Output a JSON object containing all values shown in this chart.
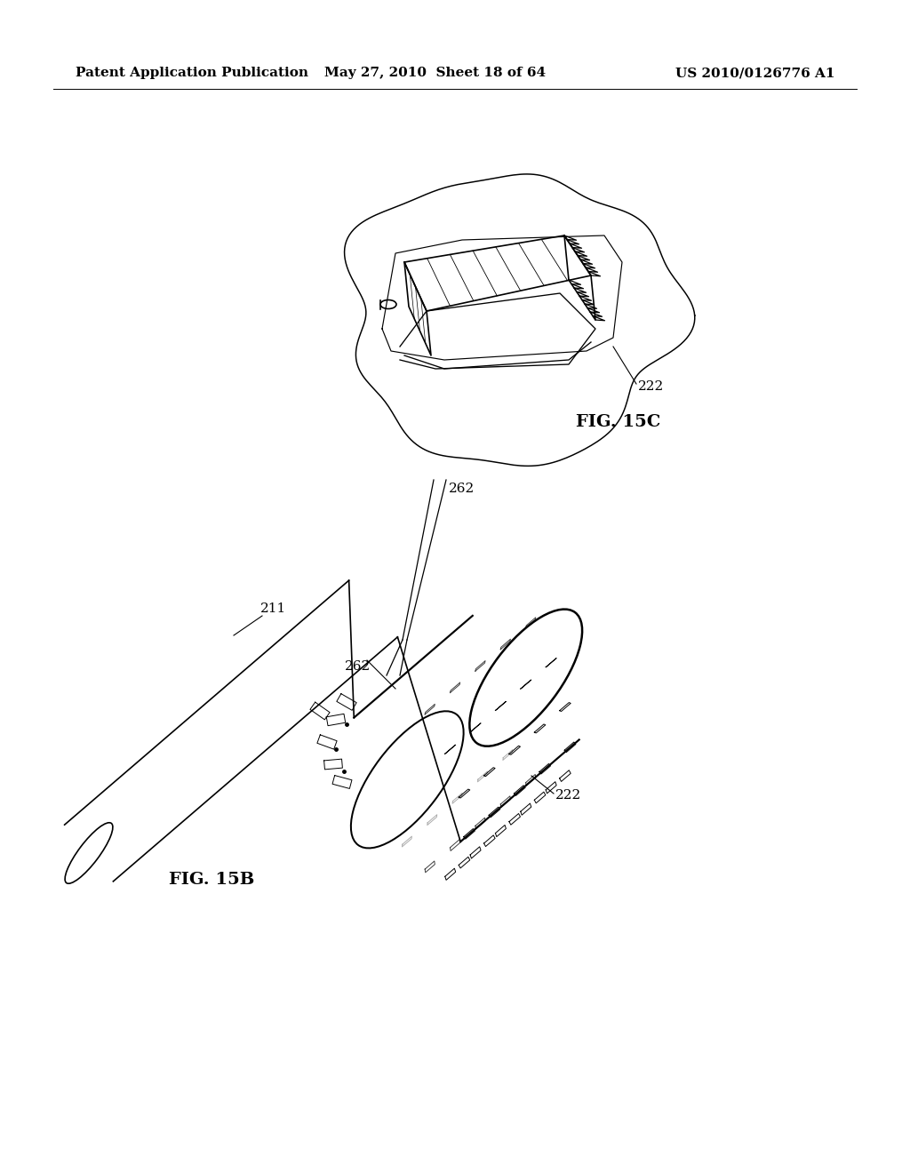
{
  "background_color": "#ffffff",
  "header_left": "Patent Application Publication",
  "header_middle": "May 27, 2010  Sheet 18 of 64",
  "header_right": "US 2010/0126776 A1",
  "line_color": "#000000",
  "annotation_fontsize": 11,
  "fig_label_fontsize": 14,
  "header_fontsize": 11,
  "fig15c_label": "FIG. 15C",
  "fig15b_label": "FIG. 15B",
  "label_211": "211",
  "label_262a": "262",
  "label_262b": "262",
  "label_222a": "222",
  "label_222b": "222"
}
